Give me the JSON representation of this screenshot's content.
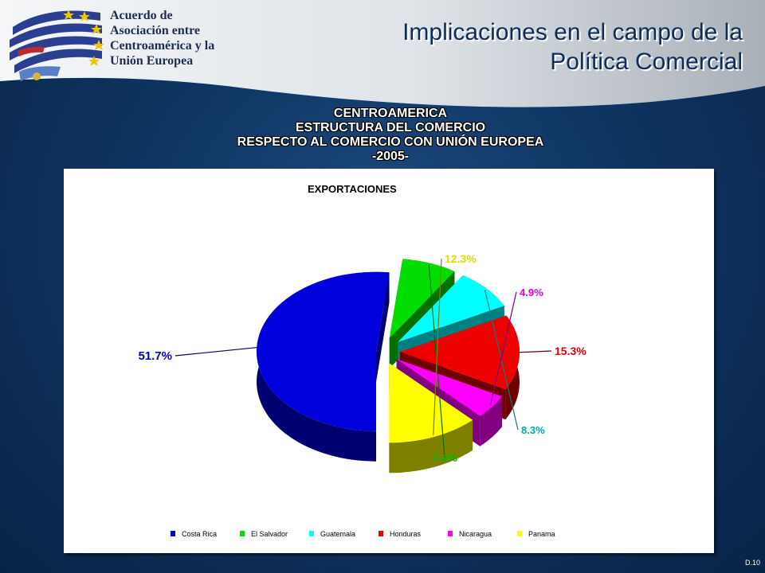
{
  "logo": {
    "lines": [
      "Acuerdo de",
      "Asociación entre",
      "Centroamérica y la",
      "Unión Europea"
    ]
  },
  "slide": {
    "title_line1": "Implicaciones en el campo de la",
    "title_line2": "Política Comercial",
    "code": "D.10"
  },
  "chart_heading": {
    "line1": "CENTROAMERICA",
    "line2": "ESTRUCTURA DEL COMERCIO",
    "line3": "RESPECTO AL COMERCIO CON  UNIÓN EUROPEA",
    "line4": "-2005-"
  },
  "colors": {
    "header_band": "#e9ecef",
    "background": "#0f3562",
    "title": "#0c2d5a"
  },
  "chart_data": {
    "type": "pie",
    "title": "EXPORTACIONES",
    "categories": [
      "Costa Rica",
      "El Salvador",
      "Guatemala",
      "Honduras",
      "Nicaragua",
      "Panama"
    ],
    "values": [
      51.7,
      7.4,
      8.3,
      15.3,
      4.9,
      12.3
    ],
    "labels": [
      "51.7%",
      "7.4%",
      "8.3%",
      "15.3%",
      "4.9%",
      "12.3%"
    ],
    "colors": [
      "#0000dd",
      "#00dd00",
      "#00ffff",
      "#ee0000",
      "#ff00ff",
      "#ffff00"
    ],
    "side_colors": [
      "#000070",
      "#007000",
      "#008080",
      "#700000",
      "#800080",
      "#808000"
    ],
    "label_colors": [
      "#0000cc",
      "#00bb00",
      "#00aaaa",
      "#dd0000",
      "#dd00dd",
      "#dddd00"
    ],
    "legend_position": "bottom",
    "exploded": true,
    "three_d": true
  }
}
